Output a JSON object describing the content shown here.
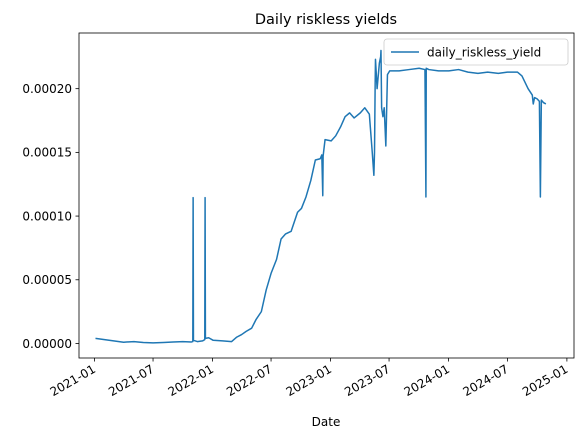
{
  "chart_data": {
    "type": "line",
    "title": "Daily riskless yields",
    "xlabel": "Date",
    "ylabel": "",
    "legend_position": "top-right",
    "grid": false,
    "x_type": "date",
    "xlim": [
      "2020-11-14",
      "2025-01-23"
    ],
    "ylim": [
      -1.14e-05,
      0.0002437
    ],
    "x_ticks": [
      "2021-01-01",
      "2021-07-01",
      "2022-01-01",
      "2022-07-01",
      "2023-01-01",
      "2023-07-01",
      "2024-01-01",
      "2024-07-01",
      "2025-01-01"
    ],
    "x_tick_labels": [
      "2021-01",
      "2021-07",
      "2022-01",
      "2022-07",
      "2023-01",
      "2023-07",
      "2024-01",
      "2024-07",
      "2025-01"
    ],
    "y_ticks": [
      0,
      5e-05,
      0.0001,
      0.00015,
      0.0002
    ],
    "y_tick_labels": [
      "0.00000",
      "0.00005",
      "0.00010",
      "0.00015",
      "0.00020"
    ],
    "series": [
      {
        "name": "daily_riskless_yield",
        "color": "#1f77b4",
        "points": [
          [
            "2021-01-04",
            4e-06
          ],
          [
            "2021-02-01",
            3e-06
          ],
          [
            "2021-03-01",
            2e-06
          ],
          [
            "2021-04-01",
            1e-06
          ],
          [
            "2021-05-03",
            1.5e-06
          ],
          [
            "2021-06-01",
            8e-07
          ],
          [
            "2021-07-01",
            5e-07
          ],
          [
            "2021-08-02",
            8e-07
          ],
          [
            "2021-09-01",
            1.2e-06
          ],
          [
            "2021-10-01",
            1.5e-06
          ],
          [
            "2021-10-28",
            1.2e-06
          ],
          [
            "2021-11-01",
            1.5e-06
          ],
          [
            "2021-11-02",
            0.0001145
          ],
          [
            "2021-11-03",
            2.5e-06
          ],
          [
            "2021-11-15",
            1.5e-06
          ],
          [
            "2021-12-01",
            2e-06
          ],
          [
            "2021-12-08",
            3e-06
          ],
          [
            "2021-12-09",
            0.0001145
          ],
          [
            "2021-12-10",
            4e-06
          ],
          [
            "2021-12-20",
            4.5e-06
          ],
          [
            "2022-01-03",
            2.5e-06
          ],
          [
            "2022-02-01",
            2e-06
          ],
          [
            "2022-03-01",
            1.5e-06
          ],
          [
            "2022-03-17",
            5e-06
          ],
          [
            "2022-04-01",
            7e-06
          ],
          [
            "2022-04-15",
            9.5e-06
          ],
          [
            "2022-05-02",
            1.2e-05
          ],
          [
            "2022-05-16",
            1.9e-05
          ],
          [
            "2022-06-01",
            2.5e-05
          ],
          [
            "2022-06-16",
            4.2e-05
          ],
          [
            "2022-07-01",
            5.5e-05
          ],
          [
            "2022-07-18",
            6.6e-05
          ],
          [
            "2022-08-01",
            8.2e-05
          ],
          [
            "2022-08-15",
            8.6e-05
          ],
          [
            "2022-09-01",
            8.8e-05
          ],
          [
            "2022-09-21",
            0.000103
          ],
          [
            "2022-10-03",
            0.000106
          ],
          [
            "2022-10-17",
            0.000115
          ],
          [
            "2022-11-01",
            0.000128
          ],
          [
            "2022-11-15",
            0.000144
          ],
          [
            "2022-11-30",
            0.000145
          ],
          [
            "2022-12-05",
            0.000148
          ],
          [
            "2022-12-08",
            0.000116
          ],
          [
            "2022-12-09",
            0.000147
          ],
          [
            "2022-12-15",
            0.00016
          ],
          [
            "2023-01-03",
            0.000159
          ],
          [
            "2023-01-17",
            0.000163
          ],
          [
            "2023-02-01",
            0.00017
          ],
          [
            "2023-02-15",
            0.000178
          ],
          [
            "2023-03-01",
            0.000181
          ],
          [
            "2023-03-15",
            0.000177
          ],
          [
            "2023-04-03",
            0.000181
          ],
          [
            "2023-04-17",
            0.000185
          ],
          [
            "2023-05-01",
            0.00018
          ],
          [
            "2023-05-10",
            0.00015
          ],
          [
            "2023-05-15",
            0.000132
          ],
          [
            "2023-05-17",
            0.00015
          ],
          [
            "2023-05-19",
            0.000204
          ],
          [
            "2023-05-20",
            0.000223
          ],
          [
            "2023-05-25",
            0.0002
          ],
          [
            "2023-06-01",
            0.00022
          ],
          [
            "2023-06-05",
            0.000225
          ],
          [
            "2023-06-06",
            0.00023
          ],
          [
            "2023-06-08",
            0.000185
          ],
          [
            "2023-06-12",
            0.000178
          ],
          [
            "2023-06-16",
            0.000185
          ],
          [
            "2023-06-21",
            0.000155
          ],
          [
            "2023-06-26",
            0.000211
          ],
          [
            "2023-07-03",
            0.000214
          ],
          [
            "2023-08-01",
            0.000214
          ],
          [
            "2023-09-01",
            0.000215
          ],
          [
            "2023-10-02",
            0.000216
          ],
          [
            "2023-10-20",
            0.000215
          ],
          [
            "2023-10-23",
            0.000115
          ],
          [
            "2023-10-24",
            0.000216
          ],
          [
            "2023-11-01",
            0.000215
          ],
          [
            "2023-12-01",
            0.000214
          ],
          [
            "2024-01-02",
            0.000214
          ],
          [
            "2024-02-01",
            0.000215
          ],
          [
            "2024-03-01",
            0.000213
          ],
          [
            "2024-04-01",
            0.000212
          ],
          [
            "2024-05-01",
            0.000213
          ],
          [
            "2024-06-03",
            0.000212
          ],
          [
            "2024-07-01",
            0.000213
          ],
          [
            "2024-08-01",
            0.000213
          ],
          [
            "2024-08-15",
            0.00021
          ],
          [
            "2024-09-03",
            0.0002
          ],
          [
            "2024-09-16",
            0.000195
          ],
          [
            "2024-09-19",
            0.000188
          ],
          [
            "2024-09-23",
            0.000193
          ],
          [
            "2024-10-01",
            0.000192
          ],
          [
            "2024-10-08",
            0.00019
          ],
          [
            "2024-10-11",
            0.000115
          ],
          [
            "2024-10-14",
            0.000191
          ],
          [
            "2024-10-21",
            0.000189
          ],
          [
            "2024-10-28",
            0.000188
          ]
        ]
      }
    ]
  }
}
